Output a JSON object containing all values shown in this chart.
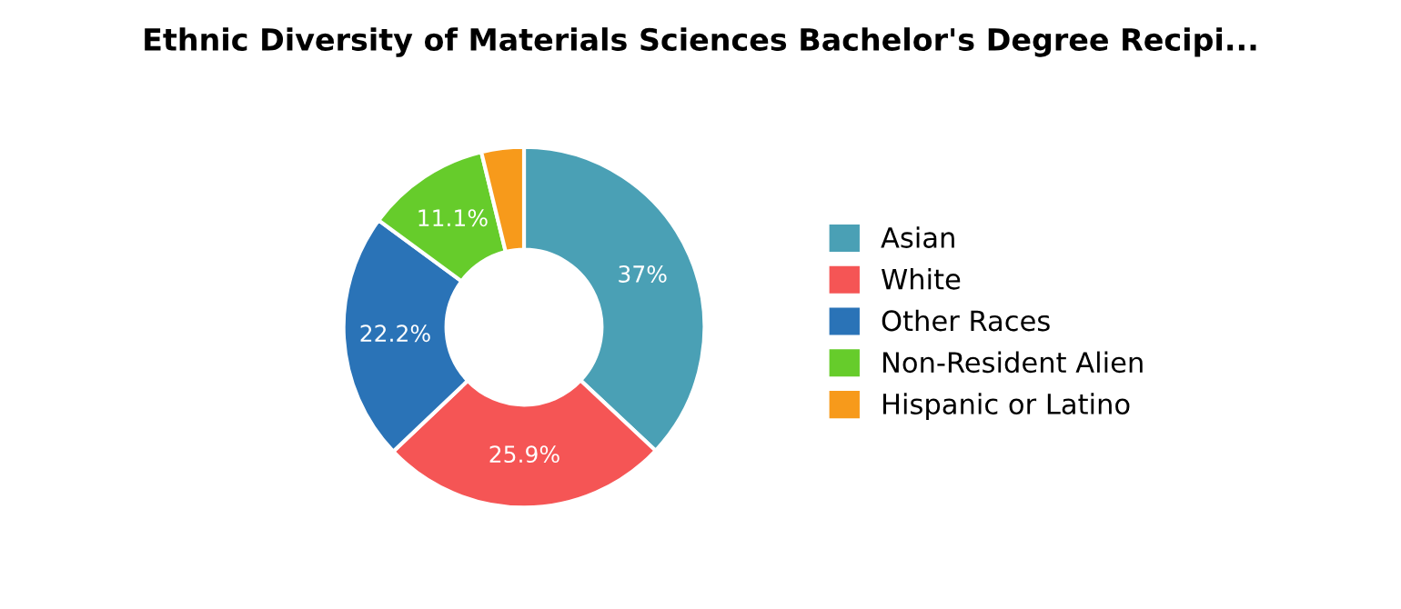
{
  "chart_data": {
    "type": "donut",
    "title": "Ethnic Diversity of Materials Sciences Bachelor's Degree Recipi...",
    "categories": [
      "Asian",
      "White",
      "Other Races",
      "Non-Resident Alien",
      "Hispanic or Latino"
    ],
    "values": [
      37,
      25.9,
      22.2,
      11.1,
      3.8
    ],
    "colors": [
      "#4aa0b5",
      "#f55555",
      "#2a73b7",
      "#66cc2b",
      "#f79a1b"
    ],
    "value_labels": [
      "37%",
      "25.9%",
      "22.2%",
      "11.1%",
      null
    ],
    "legend": "right"
  }
}
